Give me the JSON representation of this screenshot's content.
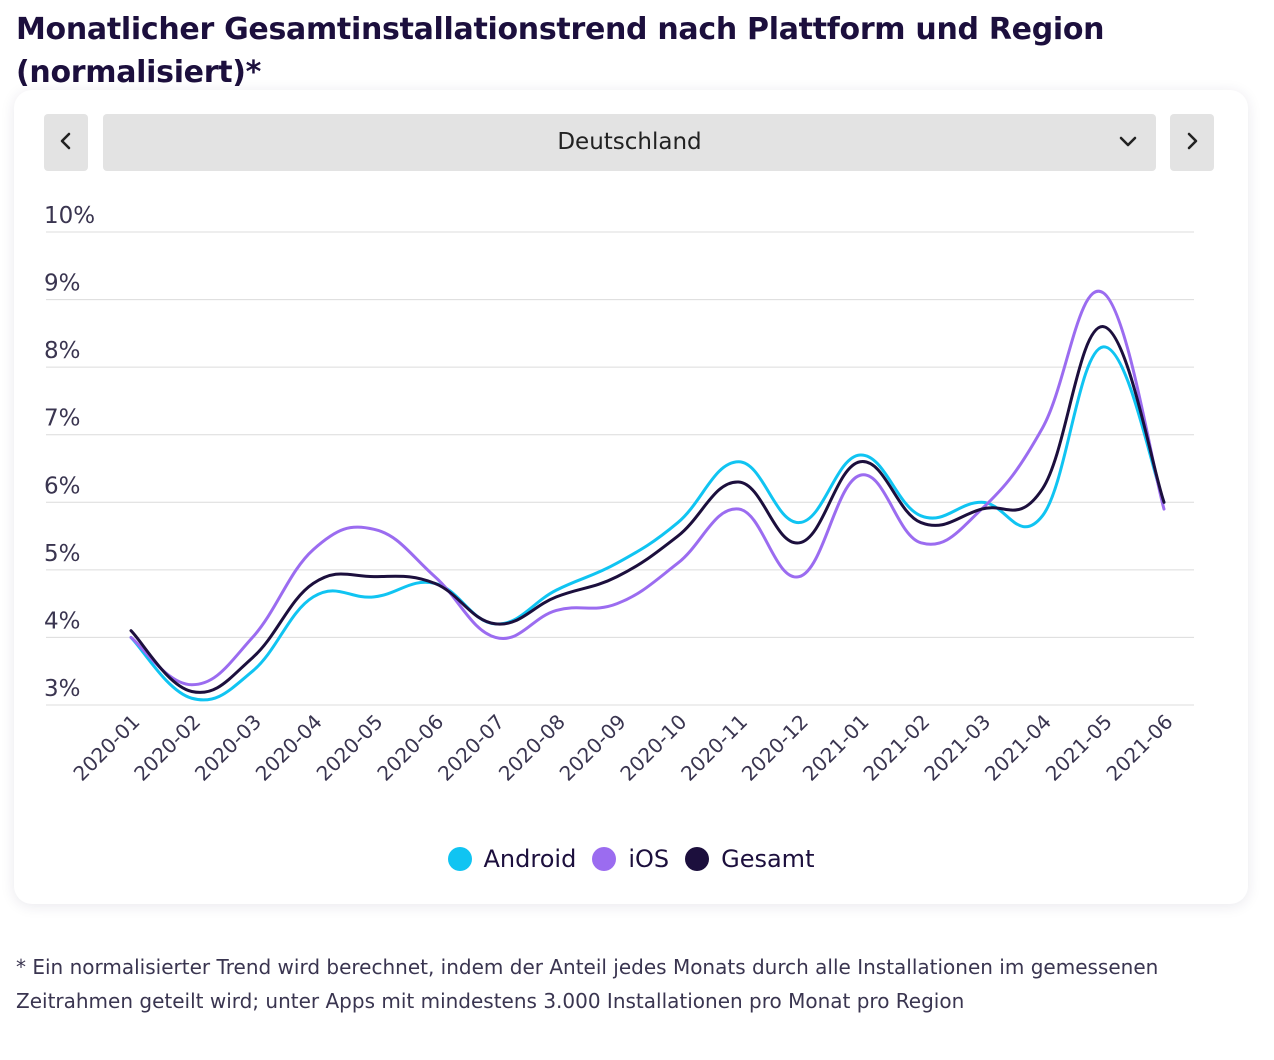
{
  "page": {
    "title": "Monatlicher Gesamtinstallationstrend nach Plattform und Region (normalisiert)*",
    "footnote": "* Ein normalisierter Trend wird berechnet, indem der Anteil jedes Monats durch alle Installationen im gemessenen Zeitrahmen geteilt wird; unter Apps mit mindestens 3.000 Installationen pro Monat pro Region"
  },
  "controls": {
    "region_selected": "Deutschland",
    "prev_icon": "chevron-left-icon",
    "next_icon": "chevron-right-icon",
    "dropdown_icon": "chevron-down-icon"
  },
  "chart_data": {
    "type": "line",
    "x": [
      "2020-01",
      "2020-02",
      "2020-03",
      "2020-04",
      "2020-05",
      "2020-06",
      "2020-07",
      "2020-08",
      "2020-09",
      "2020-10",
      "2020-11",
      "2020-12",
      "2021-01",
      "2021-02",
      "2021-03",
      "2021-04",
      "2021-05",
      "2021-06"
    ],
    "y_ticks": [
      "3%",
      "4%",
      "5%",
      "6%",
      "7%",
      "8%",
      "9%",
      "10%"
    ],
    "ylim": [
      3,
      10
    ],
    "y_unit": "%",
    "grid": true,
    "legend_position": "bottom-center",
    "series": [
      {
        "name": "Android",
        "color": "#10c4f2",
        "values": [
          4.0,
          3.1,
          3.5,
          4.6,
          4.6,
          4.8,
          4.2,
          4.7,
          5.1,
          5.7,
          6.6,
          5.7,
          6.7,
          5.8,
          6.0,
          5.8,
          8.3,
          6.0
        ]
      },
      {
        "name": "iOS",
        "color": "#9b6cf0",
        "values": [
          4.0,
          3.3,
          4.0,
          5.3,
          5.6,
          4.9,
          4.0,
          4.4,
          4.5,
          5.1,
          5.9,
          4.9,
          6.4,
          5.4,
          5.9,
          7.1,
          9.1,
          5.9
        ]
      },
      {
        "name": "Gesamt",
        "color": "#1c0f3d",
        "values": [
          4.1,
          3.2,
          3.7,
          4.8,
          4.9,
          4.8,
          4.2,
          4.6,
          4.9,
          5.5,
          6.3,
          5.4,
          6.6,
          5.7,
          5.9,
          6.2,
          8.6,
          6.0
        ]
      }
    ]
  }
}
